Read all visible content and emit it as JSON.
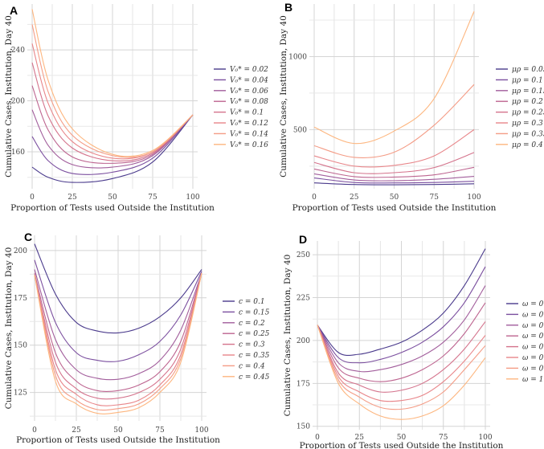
{
  "colors": [
    "#4a3a8c",
    "#7b4f9f",
    "#a25e9c",
    "#bd6590",
    "#d4738c",
    "#e8868a",
    "#f49c86",
    "#fdb67f"
  ],
  "chart_data": [
    {
      "type": "line",
      "panel": "A",
      "xlabel": "Proportion of Tests used Outside the Institution",
      "ylabel": "Cumulative Cases, Institution, Day 40",
      "xlim": [
        0,
        100
      ],
      "ylim": [
        131,
        276
      ],
      "xticks": [
        0,
        25,
        50,
        75,
        100
      ],
      "yticks": [
        160,
        200,
        240
      ],
      "yminor": [
        140,
        180,
        220,
        260
      ],
      "x": [
        0,
        10,
        25,
        50,
        75,
        100
      ],
      "series": [
        {
          "name": "V₀* = 0.02",
          "values": [
            148,
            140,
            136,
            139,
            152,
            189
          ]
        },
        {
          "name": "V₀* = 0.04",
          "values": [
            172,
            153,
            143,
            144,
            155,
            189
          ]
        },
        {
          "name": "V₀* = 0.06",
          "values": [
            193,
            165,
            150,
            148,
            157,
            189
          ]
        },
        {
          "name": "V₀* = 0.08",
          "values": [
            212,
            177,
            156,
            151,
            158,
            189
          ]
        },
        {
          "name": "V₀* = 0.1",
          "values": [
            230,
            188,
            163,
            153,
            159,
            189
          ]
        },
        {
          "name": "V₀* = 0.12",
          "values": [
            245,
            198,
            168,
            155,
            160,
            189
          ]
        },
        {
          "name": "V₀* = 0.14",
          "values": [
            260,
            207,
            173,
            157,
            160,
            189
          ]
        },
        {
          "name": "V₀* = 0.16",
          "values": [
            272,
            216,
            178,
            158,
            161,
            189
          ]
        }
      ],
      "grid": true,
      "legend": "right"
    },
    {
      "type": "line",
      "panel": "B",
      "xlabel": "Proportion of Tests used Outside the Institution",
      "ylabel": "Cumulative Cases, Institution, Day 40",
      "xlim": [
        0,
        100
      ],
      "ylim": [
        95,
        1360
      ],
      "xticks": [
        0,
        25,
        50,
        75,
        100
      ],
      "yticks": [
        500,
        1000
      ],
      "yminor": [
        250,
        750,
        1250
      ],
      "x": [
        0,
        25,
        50,
        75,
        100
      ],
      "series": [
        {
          "name": "μρ = 0.05",
          "values": [
            135,
            124,
            122,
            124,
            129
          ]
        },
        {
          "name": "μρ = 0.1",
          "values": [
            169,
            138,
            135,
            138,
            146
          ]
        },
        {
          "name": "μρ = 0.15",
          "values": [
            197,
            155,
            150,
            160,
            180
          ]
        },
        {
          "name": "μρ = 0.2",
          "values": [
            230,
            178,
            175,
            190,
            242
          ]
        },
        {
          "name": "μρ = 0.25",
          "values": [
            275,
            205,
            205,
            240,
            343
          ]
        },
        {
          "name": "μρ = 0.3",
          "values": [
            320,
            250,
            255,
            320,
            500
          ]
        },
        {
          "name": "μρ = 0.35",
          "values": [
            390,
            310,
            345,
            530,
            809
          ]
        },
        {
          "name": "μρ = 0.4",
          "values": [
            517,
            405,
            490,
            713,
            1309
          ]
        }
      ],
      "grid": true,
      "legend": "right"
    },
    {
      "type": "line",
      "panel": "C",
      "xlabel": "Proportion of Tests used Outside the Institution",
      "ylabel": "Cumulative Cases, Institution, Day 40",
      "xlim": [
        0,
        100
      ],
      "ylim": [
        110,
        208
      ],
      "xticks": [
        0,
        25,
        50,
        75,
        100
      ],
      "yticks": [
        125,
        150,
        175,
        200
      ],
      "yminor": [
        112.5,
        137.5,
        162.5,
        187.5
      ],
      "x": [
        0,
        12.5,
        25,
        37.5,
        50,
        62.5,
        75,
        87.5,
        100
      ],
      "series": [
        {
          "name": "c = 0.1",
          "values": [
            203.5,
            177,
            162,
            157.5,
            156.5,
            159,
            165,
            175,
            190
          ]
        },
        {
          "name": "c = 0.15",
          "values": [
            195,
            162,
            146,
            142,
            141.5,
            145,
            152,
            166,
            189
          ]
        },
        {
          "name": "c = 0.2",
          "values": [
            190,
            153,
            137,
            132.5,
            132,
            135,
            142,
            158,
            188
          ]
        },
        {
          "name": "c = 0.25",
          "values": [
            188,
            146,
            131,
            126,
            126,
            129,
            136,
            152,
            188
          ]
        },
        {
          "name": "c = 0.3",
          "values": [
            187,
            141,
            127,
            122,
            122,
            125,
            132,
            148,
            188
          ]
        },
        {
          "name": "c = 0.35",
          "values": [
            187,
            137,
            124,
            118.5,
            118.5,
            121,
            129,
            145,
            188
          ]
        },
        {
          "name": "c = 0.4",
          "values": [
            187,
            134,
            121,
            116,
            116.5,
            119,
            127,
            143,
            188
          ]
        },
        {
          "name": "c = 0.45",
          "values": [
            187,
            131,
            119,
            114,
            114.5,
            117,
            125,
            141,
            188
          ]
        }
      ],
      "grid": true,
      "legend": "right"
    },
    {
      "type": "line",
      "panel": "D",
      "xlabel": "Proportion of Tests used Outside the Institution",
      "ylabel": "Cumulative Cases, Institution, Day 40",
      "xlim": [
        0,
        100
      ],
      "ylim": [
        148,
        258
      ],
      "xticks": [
        0,
        25,
        50,
        75,
        100
      ],
      "yticks": [
        150,
        175,
        200,
        225,
        250
      ],
      "yminor": [
        162.5,
        187.5,
        212.5,
        237.5
      ],
      "x": [
        0,
        12.5,
        25,
        37.5,
        50,
        62.5,
        75,
        87.5,
        100
      ],
      "series": [
        {
          "name": "ω = 0.3",
          "values": [
            209,
            193,
            192,
            195,
            199,
            206,
            216,
            232,
            253.5
          ]
        },
        {
          "name": "ω = 0.4",
          "values": [
            209,
            190,
            187,
            189,
            193,
            199,
            208,
            222,
            243
          ]
        },
        {
          "name": "ω = 0.5",
          "values": [
            209,
            187,
            182,
            183,
            186,
            191,
            199,
            212,
            232
          ]
        },
        {
          "name": "ω = 0.6",
          "values": [
            209,
            184,
            178,
            176,
            178,
            183,
            191,
            204,
            222
          ]
        },
        {
          "name": "ω = 0.7",
          "values": [
            209,
            181,
            174,
            170,
            171,
            175,
            183,
            195,
            211
          ]
        },
        {
          "name": "ω = 0.8",
          "values": [
            209,
            179,
            170,
            165,
            165,
            168,
            176,
            188,
            203
          ]
        },
        {
          "name": "ω = 0.9",
          "values": [
            209,
            177,
            167,
            161,
            160,
            163,
            170,
            183,
            197
          ]
        },
        {
          "name": "ω = 1",
          "values": [
            209,
            175,
            163,
            156,
            154,
            156,
            162,
            174,
            190
          ]
        }
      ],
      "grid": true,
      "legend": "right"
    }
  ]
}
